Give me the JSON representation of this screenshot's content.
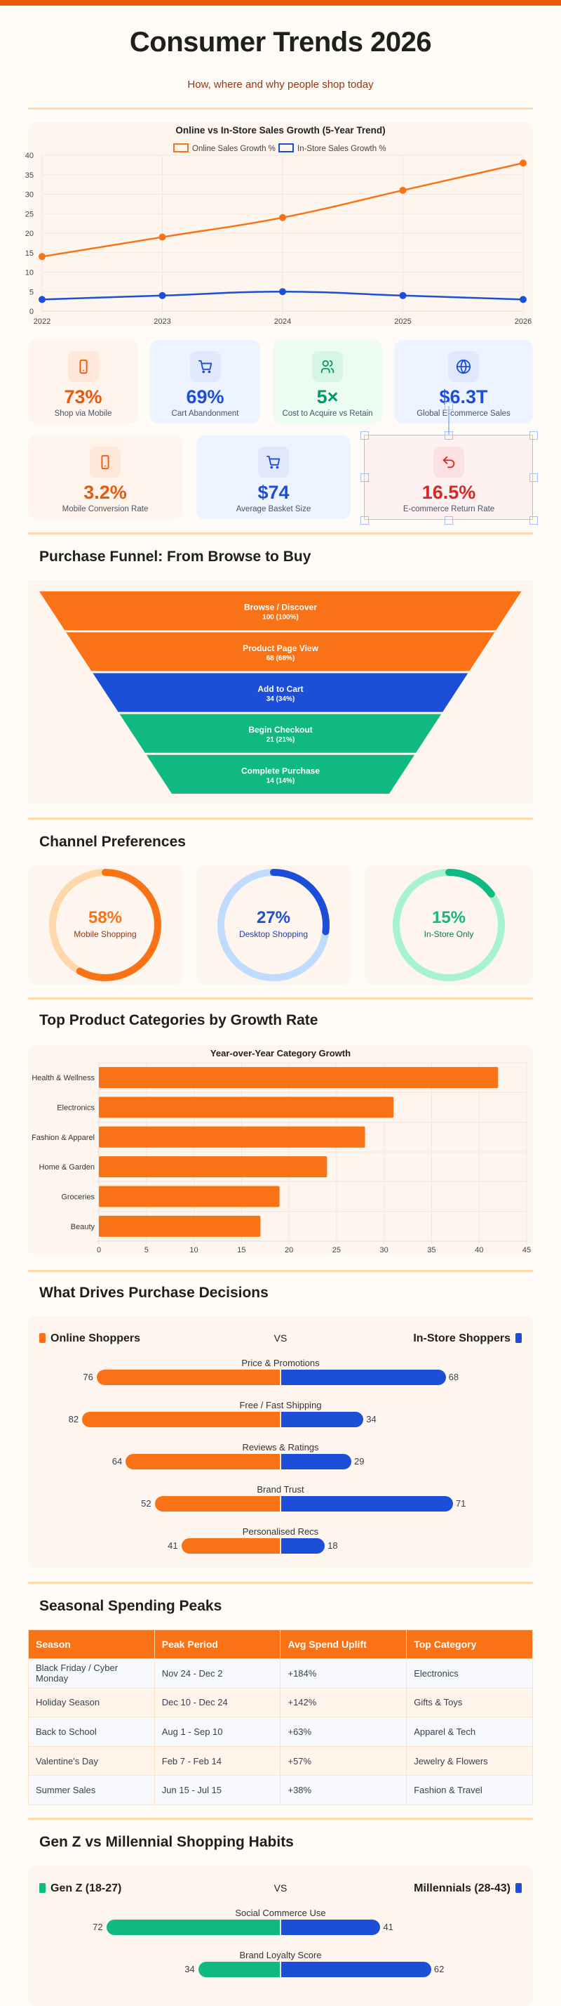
{
  "header": {
    "title": "Consumer Trends 2026",
    "subtitle": "How, where and why people shop today"
  },
  "sections": {
    "funnel": "Purchase Funnel: From Browse to Buy",
    "channels": "Channel Preferences",
    "categories": "Top Product Categories by Growth Rate",
    "drivers": "What Drives Purchase Decisions",
    "seasonal": "Seasonal Spending Peaks",
    "generations": "Gen Z vs Millennial Shopping Habits"
  },
  "kpis": [
    {
      "value": "73%",
      "label": "Shop via Mobile",
      "icon": "smartphone-icon",
      "color": "#ea580c"
    },
    {
      "value": "69%",
      "label": "Cart Abandonment",
      "icon": "cart-icon",
      "color": "#1d4ed8"
    },
    {
      "value": "5×",
      "label": "Cost to Acquire vs Retain",
      "icon": "users-icon",
      "color": "#059669"
    },
    {
      "value": "$6.3T",
      "label": "Global E-commerce Sales",
      "icon": "globe-icon",
      "color": "#1d4ed8"
    },
    {
      "value": "3.2%",
      "label": "Mobile Conversion Rate",
      "icon": "smartphone-icon",
      "color": "#ea580c"
    },
    {
      "value": "$74",
      "label": "Average Basket Size",
      "icon": "cart-icon",
      "color": "#1d4ed8"
    },
    {
      "value": "16.5%",
      "label": "E-commerce Return Rate",
      "icon": "undo-icon",
      "color": "#dc2626"
    }
  ],
  "chart_data": [
    {
      "type": "line",
      "title": "Online vs In-Store Sales Growth (5-Year Trend)",
      "categories": [
        "2022",
        "2023",
        "2024",
        "2025",
        "2026"
      ],
      "series": [
        {
          "name": "Online Sales Growth %",
          "values": [
            14,
            19,
            24,
            31,
            38
          ],
          "color": "#f97316"
        },
        {
          "name": "In-Store Sales Growth %",
          "values": [
            3,
            4,
            5,
            4,
            3
          ],
          "color": "#1d4ed8"
        }
      ],
      "ylim": [
        0,
        40
      ],
      "yticks": [
        "0",
        "5",
        "10",
        "15",
        "20",
        "25",
        "30",
        "35",
        "40"
      ],
      "grid": true,
      "legend": "top"
    },
    {
      "type": "funnel",
      "stages": [
        {
          "label": "Browse / Discover",
          "value": 100,
          "display": "100 (100%)",
          "color": "#f97316"
        },
        {
          "label": "Product Page View",
          "value": 68,
          "display": "68 (68%)",
          "color": "#f97316"
        },
        {
          "label": "Add to Cart",
          "value": 34,
          "display": "34 (34%)",
          "color": "#1d4ed8"
        },
        {
          "label": "Begin Checkout",
          "value": 21,
          "display": "21 (21%)",
          "color": "#10b981"
        },
        {
          "label": "Complete Purchase",
          "value": 14,
          "display": "14 (14%)",
          "color": "#10b981"
        }
      ]
    },
    {
      "type": "pie",
      "variant": "ring-gauges",
      "items": [
        {
          "label": "Mobile Shopping",
          "value": 58,
          "display": "58%",
          "color": "#f97316",
          "track": "#fed7aa",
          "label_color": "#9a3412"
        },
        {
          "label": "Desktop Shopping",
          "value": 27,
          "display": "27%",
          "color": "#1d4ed8",
          "track": "#bfdbfe",
          "label_color": "#1e40af"
        },
        {
          "label": "In-Store Only",
          "value": 15,
          "display": "15%",
          "color": "#10b981",
          "track": "#a7f3d0",
          "label_color": "#047857"
        }
      ]
    },
    {
      "type": "bar",
      "orientation": "horizontal",
      "title": "Year-over-Year Category Growth",
      "categories": [
        "Health & Wellness",
        "Electronics",
        "Fashion & Apparel",
        "Home & Garden",
        "Groceries",
        "Beauty"
      ],
      "values": [
        42,
        31,
        28,
        24,
        19,
        17
      ],
      "xlim": [
        0,
        45
      ],
      "xticks": [
        "0",
        "5",
        "10",
        "15",
        "20",
        "25",
        "30",
        "35",
        "40",
        "45"
      ],
      "color": "#f97316",
      "grid": true
    },
    {
      "type": "bar",
      "orientation": "diverging",
      "left_name": "Online Shoppers",
      "right_name": "In-Store Shoppers",
      "vs": "VS",
      "left_color": "#f97316",
      "right_color": "#1d4ed8",
      "rows": [
        {
          "label": "Price & Promotions",
          "left": 76,
          "right": 68
        },
        {
          "label": "Free / Fast Shipping",
          "left": 82,
          "right": 34
        },
        {
          "label": "Reviews & Ratings",
          "left": 64,
          "right": 29
        },
        {
          "label": "Brand Trust",
          "left": 52,
          "right": 71
        },
        {
          "label": "Personalised Recs",
          "left": 41,
          "right": 18
        }
      ]
    },
    {
      "type": "bar",
      "orientation": "diverging",
      "left_name": "Gen Z (18-27)",
      "right_name": "Millennials (28-43)",
      "vs": "VS",
      "left_color": "#10b981",
      "right_color": "#1d4ed8",
      "rows": [
        {
          "label": "Social Commerce Use",
          "left": 72,
          "right": 41
        },
        {
          "label": "Brand Loyalty Score",
          "left": 34,
          "right": 62
        }
      ]
    }
  ],
  "table": {
    "columns": [
      "Season",
      "Peak Period",
      "Avg Spend Uplift",
      "Top Category"
    ],
    "rows": [
      [
        "Black Friday / Cyber Monday",
        "Nov 24 - Dec 2",
        "+184%",
        "Electronics"
      ],
      [
        "Holiday Season",
        "Dec 10 - Dec 24",
        "+142%",
        "Gifts & Toys"
      ],
      [
        "Back to School",
        "Aug 1 - Sep 10",
        "+63%",
        "Apparel & Tech"
      ],
      [
        "Valentine's Day",
        "Feb 7 - Feb 14",
        "+57%",
        "Jewelry & Flowers"
      ],
      [
        "Summer Sales",
        "Jun 15 - Jul 15",
        "+38%",
        "Fashion & Travel"
      ]
    ]
  }
}
